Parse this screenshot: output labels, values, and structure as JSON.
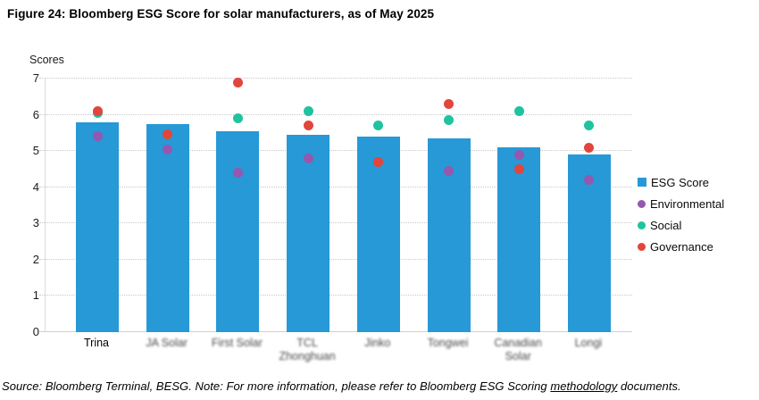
{
  "figure": {
    "title": "Figure 24: Bloomberg ESG Score for solar manufacturers, as of May 2025"
  },
  "footer": {
    "prefix": "Source: Bloomberg Terminal, BESG. Note: For more information, please refer to Bloomberg ESG Scoring ",
    "link_text": "methodology",
    "suffix": " documents."
  },
  "chart_data": {
    "type": "bar",
    "title": "Figure 24: Bloomberg ESG Score for solar manufacturers, as of May 2025",
    "xlabel": "",
    "ylabel": "Scores",
    "ylim": [
      0,
      7
    ],
    "yticks": [
      0,
      1,
      2,
      3,
      4,
      5,
      6,
      7
    ],
    "grid": "horizontal-dotted",
    "legend_position": "right",
    "categories": [
      "Trina",
      "JA Solar",
      "First Solar",
      "TCL Zhonghuan",
      "Jinko",
      "Tongwei",
      "Canadian Solar",
      "Longi"
    ],
    "category_blurred": [
      false,
      true,
      true,
      true,
      true,
      true,
      true,
      true
    ],
    "series": [
      {
        "name": "ESG Score",
        "marker": "square-bar",
        "color": "#2699D6",
        "values": [
          5.8,
          5.75,
          5.55,
          5.45,
          5.4,
          5.35,
          5.1,
          4.9
        ]
      },
      {
        "name": "Environmental",
        "marker": "circle",
        "color": "#9558AE",
        "values": [
          5.4,
          5.05,
          4.4,
          4.8,
          4.7,
          4.45,
          4.9,
          4.2
        ]
      },
      {
        "name": "Social",
        "marker": "circle",
        "color": "#1FC3A0",
        "values": [
          6.05,
          5.45,
          5.9,
          6.1,
          5.7,
          5.85,
          6.1,
          5.7
        ]
      },
      {
        "name": "Governance",
        "marker": "circle",
        "color": "#E2453C",
        "values": [
          6.1,
          5.45,
          6.9,
          5.7,
          4.7,
          6.3,
          4.5,
          5.1
        ]
      }
    ]
  }
}
